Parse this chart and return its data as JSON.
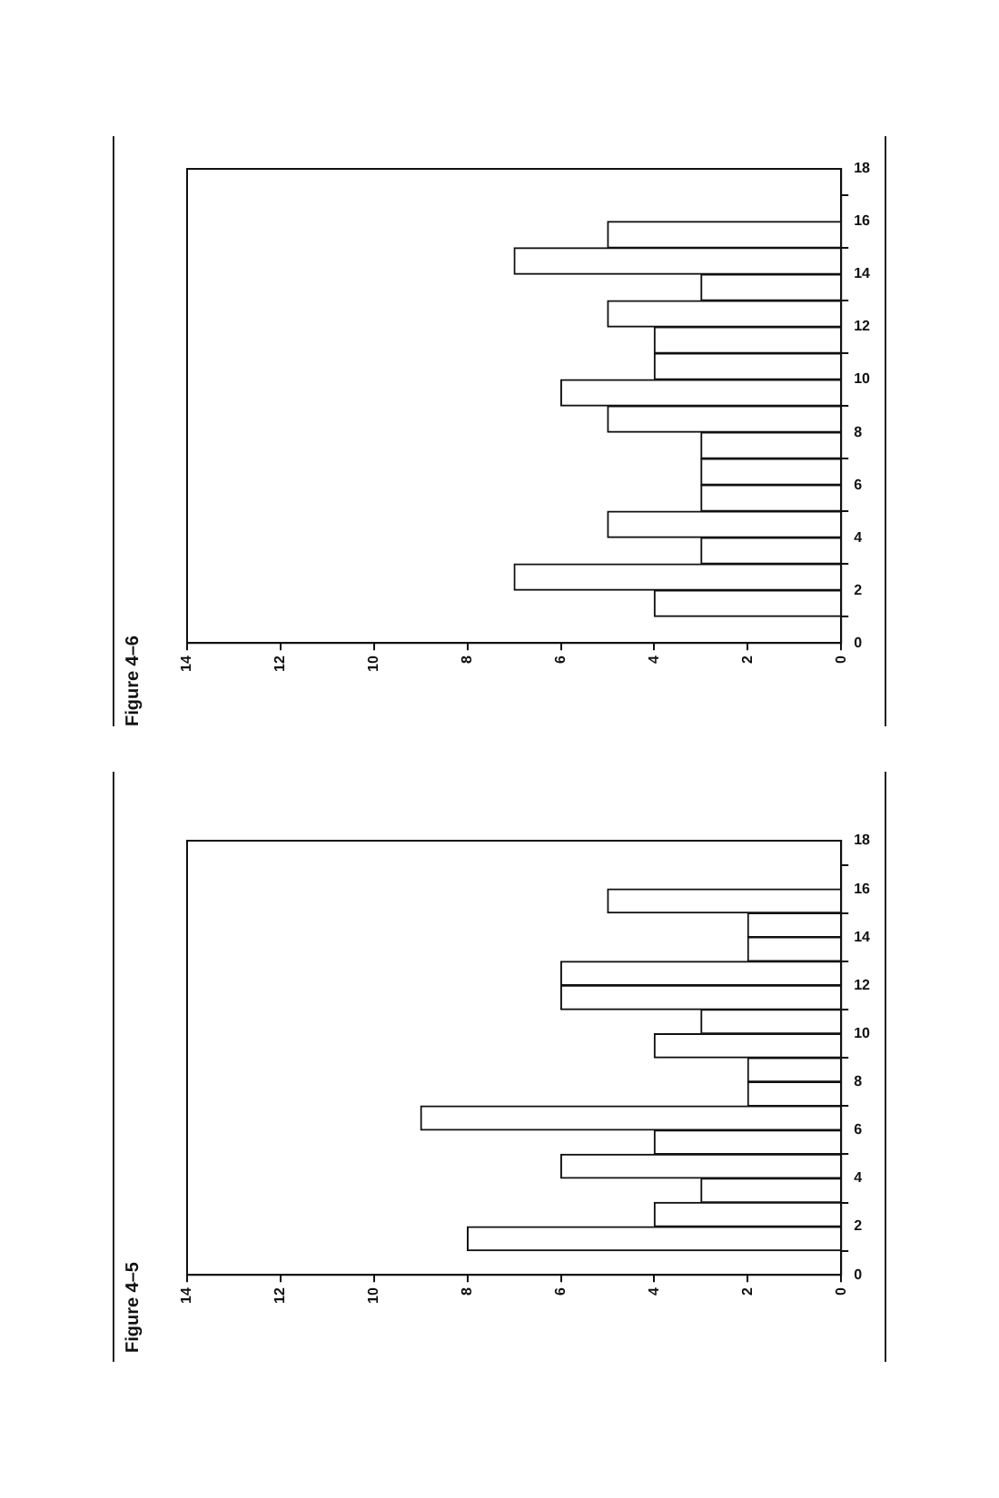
{
  "chart_data": [
    {
      "type": "histogram",
      "orientation": "horizontal",
      "title": "Figure 4–5",
      "bins": [
        1,
        2,
        3,
        4,
        5,
        6,
        7,
        8,
        9,
        10,
        11,
        12,
        13,
        14,
        15,
        16
      ],
      "values": [
        8,
        4,
        3,
        6,
        4,
        9,
        2,
        2,
        4,
        3,
        6,
        6,
        2,
        2,
        5
      ],
      "color": "#ffffff",
      "xlim": [
        14,
        0
      ],
      "xticks": [
        14,
        12,
        10,
        8,
        6,
        4,
        2,
        0
      ],
      "ylim": [
        0,
        18
      ],
      "yticks": [
        0,
        2,
        4,
        6,
        8,
        10,
        12,
        14,
        16,
        18
      ],
      "grid": false
    },
    {
      "type": "histogram",
      "orientation": "horizontal",
      "title": "Figure 4–6",
      "bins": [
        1,
        2,
        3,
        4,
        5,
        6,
        7,
        8,
        9,
        10,
        11,
        12,
        13,
        14,
        15,
        16
      ],
      "values": [
        4,
        7,
        3,
        5,
        3,
        3,
        3,
        5,
        6,
        4,
        4,
        5,
        3,
        7,
        5
      ],
      "color": "#ffffff",
      "xlim": [
        14,
        0
      ],
      "xticks": [
        14,
        12,
        10,
        8,
        6,
        4,
        2,
        0
      ],
      "ylim": [
        0,
        18
      ],
      "yticks": [
        0,
        2,
        4,
        6,
        8,
        10,
        12,
        14,
        16,
        18
      ],
      "grid": false
    }
  ]
}
